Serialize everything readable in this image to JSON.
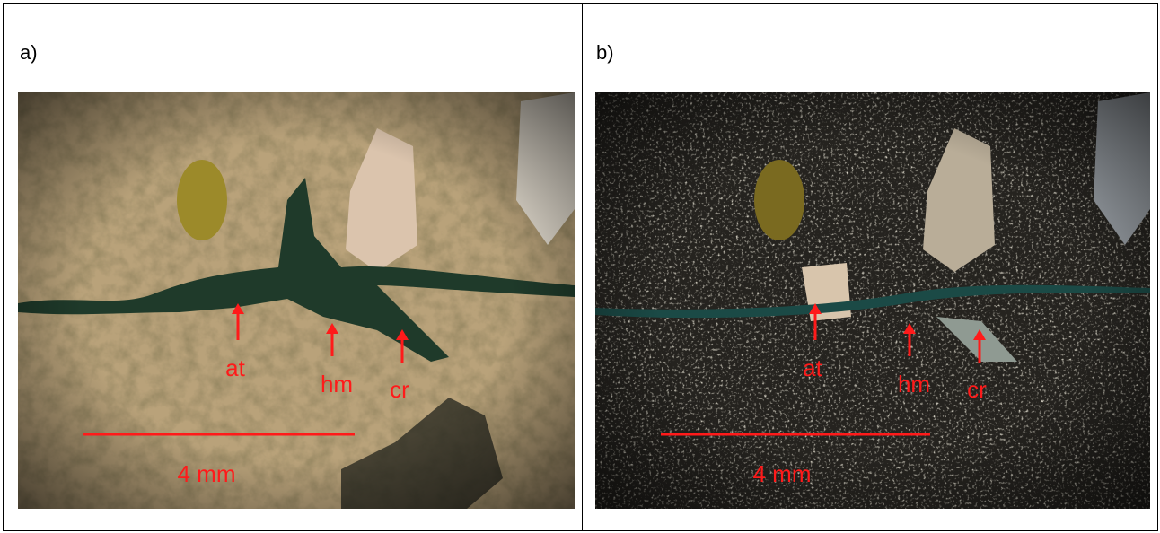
{
  "panels": [
    {
      "label": "a)",
      "annotations": [
        "at",
        "hm",
        "cr"
      ],
      "scale_bar": "4 mm"
    },
    {
      "label": "b)",
      "annotations": [
        "at",
        "hm",
        "cr"
      ],
      "scale_bar": "4 mm"
    }
  ]
}
